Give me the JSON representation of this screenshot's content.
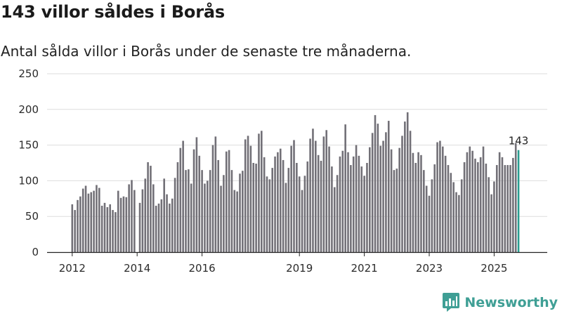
{
  "header": {
    "title": "143 villor såldes i Borås",
    "subtitle": "Antal sålda villor i Borås under de senaste tre månaderna."
  },
  "brand": {
    "name": "Newsworthy",
    "logo_icon": "newsworthy-chart-icon"
  },
  "colors": {
    "bar": "#727077",
    "highlight": "#2a9d8f",
    "grid": "#dddddd",
    "axis": "#222222",
    "brand": "#3f9f95"
  },
  "chart_data": {
    "type": "bar",
    "title": "143 villor såldes i Borås",
    "subtitle": "Antal sålda villor i Borås under de senaste tre månaderna.",
    "xlabel": "",
    "ylabel": "",
    "ylim": [
      0,
      250
    ],
    "yticks": [
      0,
      50,
      100,
      150,
      200,
      250
    ],
    "grid": true,
    "x_start": "2012-01",
    "x_end": "2025-12",
    "xticks": [
      {
        "label": "2012",
        "month": "2012-01"
      },
      {
        "label": "2014",
        "month": "2014-01"
      },
      {
        "label": "2016",
        "month": "2016-01"
      },
      {
        "label": "2019",
        "month": "2019-01"
      },
      {
        "label": "2021",
        "month": "2021-01"
      },
      {
        "label": "2023",
        "month": "2023-01"
      },
      {
        "label": "2025",
        "month": "2025-01"
      }
    ],
    "values": [
      67,
      59,
      73,
      78,
      89,
      93,
      82,
      84,
      86,
      94,
      90,
      65,
      69,
      63,
      67,
      59,
      56,
      86,
      76,
      78,
      77,
      95,
      101,
      87,
      null,
      69,
      88,
      103,
      126,
      121,
      95,
      65,
      68,
      74,
      103,
      81,
      68,
      75,
      104,
      126,
      146,
      156,
      115,
      116,
      96,
      144,
      161,
      135,
      115,
      96,
      100,
      115,
      150,
      162,
      129,
      93,
      108,
      141,
      143,
      115,
      87,
      85,
      110,
      114,
      158,
      163,
      149,
      125,
      124,
      166,
      170,
      133,
      106,
      102,
      118,
      134,
      140,
      145,
      129,
      97,
      118,
      149,
      157,
      125,
      106,
      87,
      107,
      127,
      159,
      173,
      156,
      136,
      128,
      162,
      171,
      148,
      120,
      91,
      108,
      134,
      142,
      179,
      140,
      122,
      134,
      150,
      135,
      120,
      107,
      125,
      147,
      167,
      192,
      180,
      149,
      156,
      168,
      184,
      144,
      115,
      117,
      146,
      163,
      183,
      196,
      170,
      139,
      125,
      140,
      136,
      115,
      93,
      79,
      102,
      123,
      154,
      156,
      148,
      135,
      122,
      111,
      98,
      84,
      80,
      102,
      126,
      140,
      148,
      142,
      131,
      126,
      133,
      148,
      124,
      105,
      81,
      99,
      122,
      140,
      133,
      122,
      122,
      122,
      132,
      153,
      143
    ],
    "highlight_last": true,
    "annotation": {
      "label": "143",
      "value": 143,
      "month": "2025-10"
    }
  }
}
